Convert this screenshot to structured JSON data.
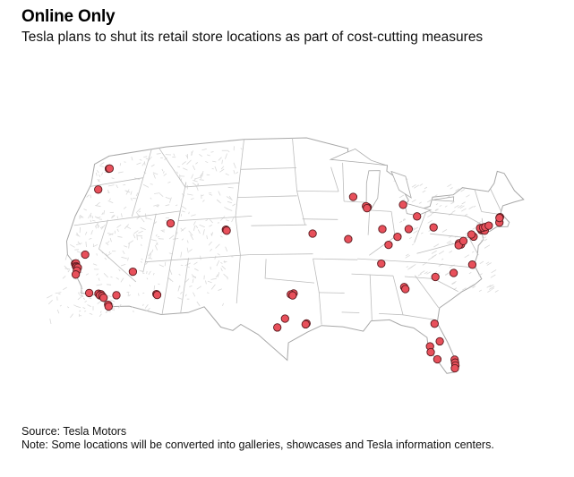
{
  "header": {
    "title": "Online Only",
    "subtitle": "Tesla plans to shut its retail store locations as part of cost-cutting measures"
  },
  "footer": {
    "source": "Source: Tesla Motors",
    "note": "Note: Some locations will be converted into galleries, showcases and Tesla information centers."
  },
  "colors": {
    "marker_fill": "#e8505b",
    "marker_stroke": "#5a1a1e",
    "land": "#ffffff",
    "border": "#bdbdbd",
    "terrain": "#d9d9d9",
    "water": "#cfe8f5"
  },
  "map": {
    "region": "contiguous-united-states",
    "marker_icon": "store-marker-icon",
    "store_locations": [
      {
        "lat": 47.6,
        "lon": -122.3
      },
      {
        "lat": 47.6,
        "lon": -122.2
      },
      {
        "lat": 45.5,
        "lon": -122.7
      },
      {
        "lat": 38.6,
        "lon": -121.5
      },
      {
        "lat": 37.8,
        "lon": -122.4
      },
      {
        "lat": 37.8,
        "lon": -122.3
      },
      {
        "lat": 37.5,
        "lon": -122.2
      },
      {
        "lat": 37.4,
        "lon": -122.1
      },
      {
        "lat": 37.3,
        "lon": -121.9
      },
      {
        "lat": 37.0,
        "lon": -121.9
      },
      {
        "lat": 36.6,
        "lon": -121.9
      },
      {
        "lat": 34.4,
        "lon": -119.7
      },
      {
        "lat": 34.2,
        "lon": -118.6
      },
      {
        "lat": 34.1,
        "lon": -118.3
      },
      {
        "lat": 34.0,
        "lon": -118.4
      },
      {
        "lat": 33.9,
        "lon": -118.1
      },
      {
        "lat": 33.7,
        "lon": -117.9
      },
      {
        "lat": 33.8,
        "lon": -116.5
      },
      {
        "lat": 32.9,
        "lon": -117.2
      },
      {
        "lat": 32.7,
        "lon": -117.1
      },
      {
        "lat": 36.1,
        "lon": -115.2
      },
      {
        "lat": 33.5,
        "lon": -112.0
      },
      {
        "lat": 33.4,
        "lon": -111.9
      },
      {
        "lat": 40.8,
        "lon": -111.9
      },
      {
        "lat": 39.7,
        "lon": -105.0
      },
      {
        "lat": 39.6,
        "lon": -104.9
      },
      {
        "lat": 32.9,
        "lon": -96.8
      },
      {
        "lat": 32.8,
        "lon": -97.1
      },
      {
        "lat": 32.7,
        "lon": -96.9
      },
      {
        "lat": 30.3,
        "lon": -97.7
      },
      {
        "lat": 29.8,
        "lon": -95.4
      },
      {
        "lat": 29.7,
        "lon": -95.5
      },
      {
        "lat": 29.4,
        "lon": -98.5
      },
      {
        "lat": 39.1,
        "lon": -94.6
      },
      {
        "lat": 38.6,
        "lon": -90.4
      },
      {
        "lat": 43.0,
        "lon": -89.4
      },
      {
        "lat": 42.0,
        "lon": -87.7
      },
      {
        "lat": 42.1,
        "lon": -87.9
      },
      {
        "lat": 41.9,
        "lon": -87.8
      },
      {
        "lat": 39.8,
        "lon": -86.2
      },
      {
        "lat": 38.2,
        "lon": -85.7
      },
      {
        "lat": 36.2,
        "lon": -86.8
      },
      {
        "lat": 42.5,
        "lon": -83.2
      },
      {
        "lat": 41.4,
        "lon": -81.7
      },
      {
        "lat": 40.0,
        "lon": -83.0
      },
      {
        "lat": 39.1,
        "lon": -84.5
      },
      {
        "lat": 40.4,
        "lon": -79.9
      },
      {
        "lat": 33.9,
        "lon": -84.5
      },
      {
        "lat": 33.7,
        "lon": -84.4
      },
      {
        "lat": 35.2,
        "lon": -80.8
      },
      {
        "lat": 35.8,
        "lon": -78.6
      },
      {
        "lat": 36.9,
        "lon": -76.2
      },
      {
        "lat": 38.9,
        "lon": -77.0
      },
      {
        "lat": 39.0,
        "lon": -77.2
      },
      {
        "lat": 38.8,
        "lon": -77.3
      },
      {
        "lat": 39.3,
        "lon": -76.6
      },
      {
        "lat": 39.9,
        "lon": -75.2
      },
      {
        "lat": 40.1,
        "lon": -75.4
      },
      {
        "lat": 40.7,
        "lon": -74.0
      },
      {
        "lat": 40.8,
        "lon": -73.9
      },
      {
        "lat": 40.9,
        "lon": -74.1
      },
      {
        "lat": 40.7,
        "lon": -73.6
      },
      {
        "lat": 41.0,
        "lon": -73.7
      },
      {
        "lat": 41.1,
        "lon": -73.4
      },
      {
        "lat": 41.3,
        "lon": -72.9
      },
      {
        "lat": 41.8,
        "lon": -71.4
      },
      {
        "lat": 42.4,
        "lon": -71.1
      },
      {
        "lat": 42.3,
        "lon": -71.2
      },
      {
        "lat": 30.3,
        "lon": -81.7
      },
      {
        "lat": 28.5,
        "lon": -81.4
      },
      {
        "lat": 27.9,
        "lon": -82.5
      },
      {
        "lat": 27.3,
        "lon": -82.5
      },
      {
        "lat": 26.6,
        "lon": -81.9
      },
      {
        "lat": 26.7,
        "lon": -80.1
      },
      {
        "lat": 26.4,
        "lon": -80.1
      },
      {
        "lat": 26.1,
        "lon": -80.1
      },
      {
        "lat": 25.8,
        "lon": -80.2
      }
    ]
  }
}
